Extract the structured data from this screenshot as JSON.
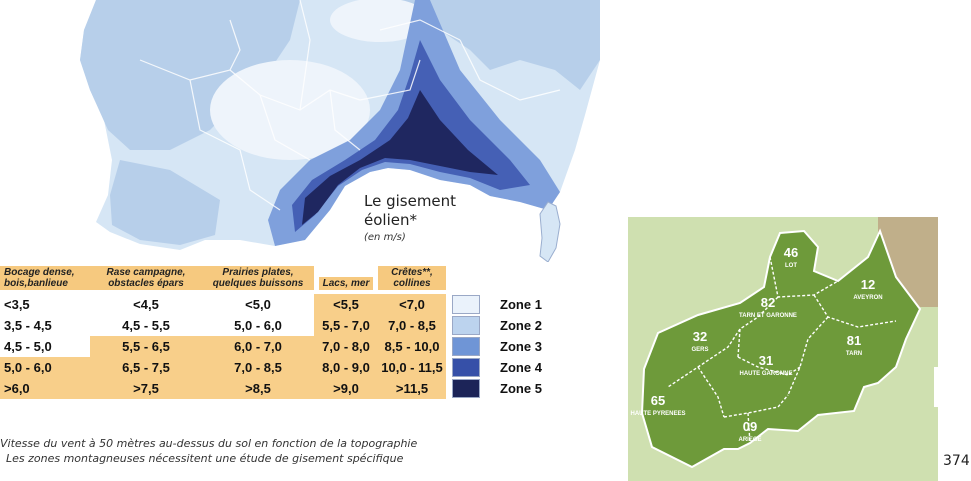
{
  "wind_figure": {
    "title": "Le gisement éolien*",
    "subtitle": "(en m/s)",
    "headers": [
      "Bocage dense, bois,banlieue",
      "Rase campagne, obstacles épars",
      "Prairies plates, quelques buissons",
      "Lacs, mer",
      "Crêtes**, collines"
    ],
    "rows": [
      {
        "values": [
          "<3,5",
          "<4,5",
          "<5,0",
          "<5,5",
          "<7,0"
        ],
        "zone": "Zone 1",
        "color": "#eaf2fb"
      },
      {
        "values": [
          "3,5 - 4,5",
          "4,5 - 5,5",
          "5,0 - 6,0",
          "5,5 - 7,0",
          "7,0 - 8,5"
        ],
        "zone": "Zone 2",
        "color": "#bcd3ee"
      },
      {
        "values": [
          "4,5 - 5,0",
          "5,5 - 6,5",
          "6,0 - 7,0",
          "7,0 - 8,0",
          "8,5 - 10,0"
        ],
        "zone": "Zone 3",
        "color": "#6f95d6"
      },
      {
        "values": [
          "5,0 - 6,0",
          "6,5 - 7,5",
          "7,0 - 8,5",
          "8,0 - 9,0",
          "10,0 - 11,5"
        ],
        "zone": "Zone 4",
        "color": "#3650a8"
      },
      {
        "values": [
          ">6,0",
          ">7,5",
          ">8,5",
          ">9,0",
          ">11,5"
        ],
        "zone": "Zone 5",
        "color": "#1c2458"
      }
    ],
    "note_1": "Vitesse du vent à 50 mètres au-dessus du sol en fonction de la topographie",
    "note_2": "Les zones montagneuses nécessitent une étude de gisement spécifique"
  },
  "occitanie_map": {
    "departments": [
      {
        "num": "46",
        "name": "LOT"
      },
      {
        "num": "12",
        "name": "AVEYRON"
      },
      {
        "num": "82",
        "name": "TARN ET GARONNE"
      },
      {
        "num": "32",
        "name": "GERS"
      },
      {
        "num": "81",
        "name": "TARN"
      },
      {
        "num": "31",
        "name": "HAUTE GARONNE"
      },
      {
        "num": "65",
        "name": "HAUTE PYRENEES"
      },
      {
        "num": "09",
        "name": "ARIEGE"
      }
    ]
  },
  "page_number": "374"
}
